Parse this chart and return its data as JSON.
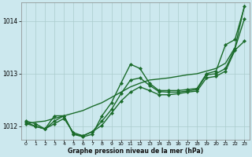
{
  "xlabel": "Graphe pression niveau de la mer (hPa)",
  "bg_color": "#cce8ee",
  "grid_color": "#aacccc",
  "line_color": "#1a6b2a",
  "ylim": [
    1011.75,
    1014.35
  ],
  "xlim": [
    -0.5,
    23.5
  ],
  "yticks": [
    1012,
    1013,
    1014
  ],
  "xticks": [
    0,
    1,
    2,
    3,
    4,
    5,
    6,
    7,
    8,
    9,
    10,
    11,
    12,
    13,
    14,
    15,
    16,
    17,
    18,
    19,
    20,
    21,
    22,
    23
  ],
  "series": [
    {
      "x": [
        0,
        1,
        2,
        3,
        4,
        5,
        6,
        7,
        8,
        9,
        10,
        11,
        12,
        13,
        14,
        15,
        16,
        17,
        18,
        19,
        20,
        21,
        22,
        23
      ],
      "y": [
        1012.05,
        1012.08,
        1012.1,
        1012.15,
        1012.2,
        1012.25,
        1012.3,
        1012.38,
        1012.45,
        1012.55,
        1012.65,
        1012.75,
        1012.82,
        1012.88,
        1012.9,
        1012.92,
        1012.95,
        1012.98,
        1013.0,
        1013.05,
        1013.1,
        1013.2,
        1013.5,
        1014.3
      ],
      "marker": null,
      "linewidth": 1.0,
      "markersize": 0
    },
    {
      "x": [
        0,
        1,
        2,
        3,
        4,
        5,
        6,
        7,
        8,
        9,
        10,
        11,
        12,
        13,
        14,
        15,
        16,
        17,
        18,
        19,
        20,
        21,
        22,
        23
      ],
      "y": [
        1012.1,
        1012.05,
        1011.95,
        1012.2,
        1012.2,
        1011.85,
        1011.8,
        1011.85,
        1012.2,
        1012.45,
        1012.82,
        1013.18,
        1013.1,
        1012.82,
        1012.68,
        1012.68,
        1012.68,
        1012.7,
        1012.72,
        1013.0,
        1013.05,
        1013.55,
        1013.65,
        1014.28
      ],
      "marker": "D",
      "linewidth": 1.0,
      "markersize": 2.2
    },
    {
      "x": [
        0,
        1,
        2,
        3,
        4,
        5,
        6,
        7,
        8,
        9,
        10,
        11,
        12,
        13,
        14,
        15,
        16,
        17,
        18,
        19,
        20,
        21,
        22,
        23
      ],
      "y": [
        1012.08,
        1012.0,
        1011.95,
        1012.1,
        1012.2,
        1011.85,
        1011.82,
        1011.9,
        1012.1,
        1012.32,
        1012.62,
        1012.88,
        1012.92,
        1012.78,
        1012.66,
        1012.65,
        1012.65,
        1012.67,
        1012.7,
        1012.98,
        1013.0,
        1013.1,
        1013.48,
        1014.05
      ],
      "marker": "D",
      "linewidth": 1.0,
      "markersize": 2.2
    },
    {
      "x": [
        0,
        1,
        2,
        3,
        4,
        5,
        6,
        7,
        8,
        9,
        10,
        11,
        12,
        13,
        14,
        15,
        16,
        17,
        18,
        19,
        20,
        21,
        22,
        23
      ],
      "y": [
        1012.05,
        1012.0,
        1011.95,
        1012.05,
        1012.15,
        1011.88,
        1011.82,
        1011.9,
        1012.02,
        1012.25,
        1012.48,
        1012.65,
        1012.75,
        1012.68,
        1012.6,
        1012.6,
        1012.62,
        1012.65,
        1012.67,
        1012.92,
        1012.95,
        1013.05,
        1013.45,
        1013.62
      ],
      "marker": "D",
      "linewidth": 1.0,
      "markersize": 2.2
    }
  ]
}
